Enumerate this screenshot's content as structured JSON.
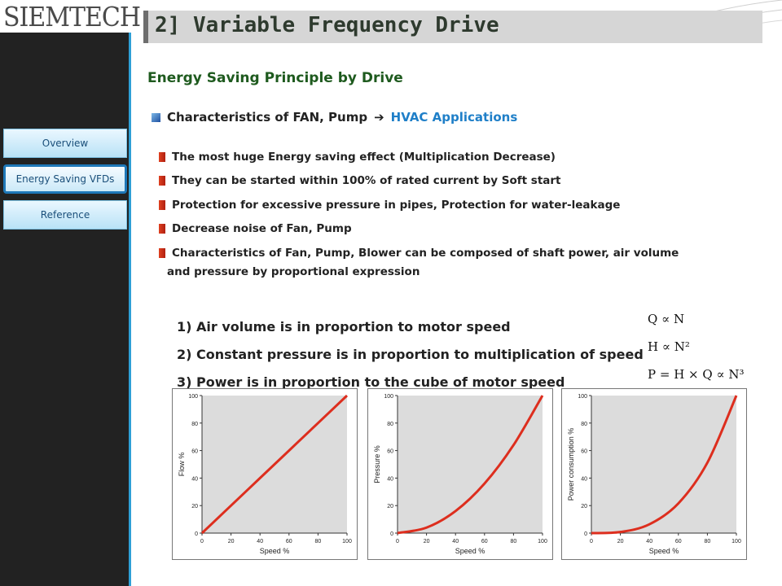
{
  "logo": {
    "text": "SIEMTECH"
  },
  "header": {
    "title": "2] Variable Frequency Drive"
  },
  "sidebar": {
    "items": [
      {
        "label": "Overview",
        "active": false
      },
      {
        "label": "Energy Saving VFDs",
        "active": true
      },
      {
        "label": "Reference",
        "active": false
      }
    ]
  },
  "main": {
    "subtitle": "Energy Saving Principle by Drive",
    "characteristics": {
      "label": "Characteristics of FAN, Pump",
      "arrow": "➔",
      "applications": "HVAC Applications"
    },
    "bullets": [
      "The most huge Energy saving effect (Multiplication Decrease)",
      "They can be started within 100% of rated current by Soft start",
      "Protection for excessive pressure in pipes, Protection for water-leakage",
      "Decrease noise of Fan, Pump",
      "Characteristics of Fan, Pump, Blower can be composed of shaft power, air volume"
    ],
    "bullet_continuation": "and pressure by proportional expression",
    "rules": [
      "1) Air volume is in proportion to motor speed",
      "2) Constant pressure is in proportion to multiplication of speed",
      "3) Power is in proportion to the cube of motor speed"
    ],
    "formulas": [
      "Q ∝ N",
      "H ∝ N²",
      "P = H × Q ∝ N³"
    ]
  },
  "colors": {
    "accent": "#2e9fd6",
    "title_green": "#1e5a1e",
    "hvac_blue": "#1f7fc8",
    "curve": "#dd2e1e",
    "plot_bg": "#dcdcdc"
  },
  "chart_data": [
    {
      "type": "line",
      "xlabel": "Speed %",
      "ylabel": "Flow %",
      "xlim": [
        0,
        100
      ],
      "ylim": [
        0,
        100
      ],
      "xticks": [
        0,
        20,
        40,
        60,
        80,
        100
      ],
      "yticks": [
        0,
        20,
        40,
        60,
        80,
        100
      ],
      "x": [
        0,
        20,
        40,
        60,
        80,
        100
      ],
      "y": [
        0,
        20,
        40,
        60,
        80,
        100
      ]
    },
    {
      "type": "line",
      "xlabel": "Speed %",
      "ylabel": "Pressure %",
      "xlim": [
        0,
        100
      ],
      "ylim": [
        0,
        100
      ],
      "xticks": [
        0,
        20,
        40,
        60,
        80,
        100
      ],
      "yticks": [
        0,
        20,
        40,
        60,
        80,
        100
      ],
      "x": [
        0,
        20,
        40,
        60,
        80,
        100
      ],
      "y": [
        0,
        4,
        16,
        36,
        64,
        100
      ]
    },
    {
      "type": "line",
      "xlabel": "Speed %",
      "ylabel": "Power consumption %",
      "xlim": [
        0,
        100
      ],
      "ylim": [
        0,
        100
      ],
      "xticks": [
        0,
        20,
        40,
        60,
        80,
        100
      ],
      "yticks": [
        0,
        20,
        40,
        60,
        80,
        100
      ],
      "x": [
        0,
        20,
        40,
        60,
        80,
        100
      ],
      "y": [
        0,
        0.8,
        6.4,
        21.6,
        51.2,
        100
      ]
    }
  ]
}
